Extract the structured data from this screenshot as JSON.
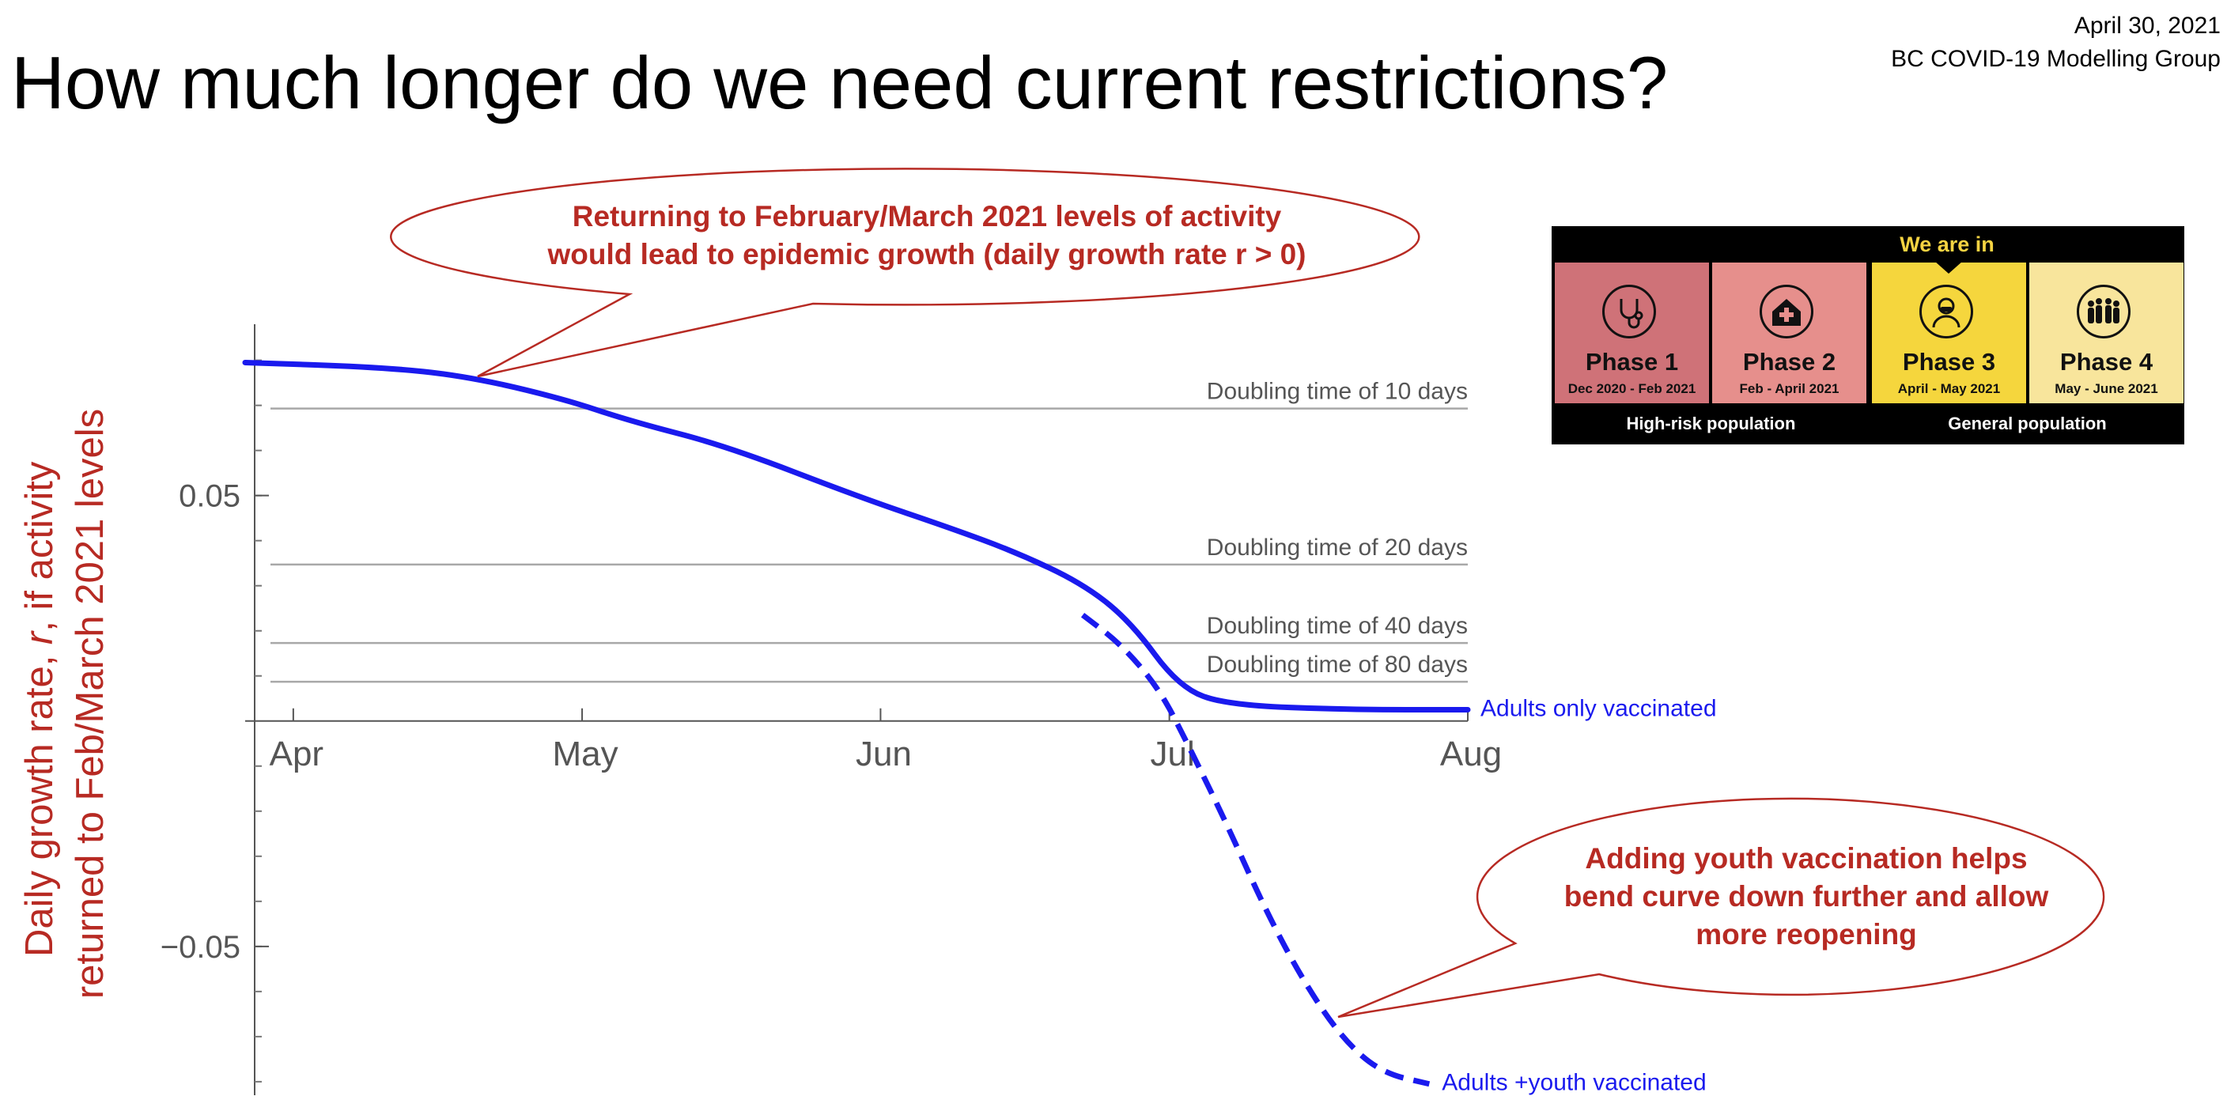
{
  "header": {
    "title": "How much longer do we need current restrictions?",
    "date": "April 30, 2021",
    "group": "BC COVID-19 Modelling Group"
  },
  "chart_data": {
    "type": "line",
    "ylabel_line1_parts": [
      "Daily growth rate, ",
      "r",
      ", if activity"
    ],
    "ylabel_line2": "returned to Feb/March 2021 levels",
    "xlim": [
      "2021-03-27",
      "2021-08-01"
    ],
    "ylim": [
      -0.083,
      0.088
    ],
    "x_ticks": [
      {
        "label": "Apr",
        "date": "2021-04-01"
      },
      {
        "label": "May",
        "date": "2021-05-01"
      },
      {
        "label": "Jun",
        "date": "2021-06-01"
      },
      {
        "label": "Jul",
        "date": "2021-07-01"
      },
      {
        "label": "Aug",
        "date": "2021-08-01"
      }
    ],
    "y_ticks": [
      {
        "label": "0.05",
        "value": 0.05
      },
      {
        "label": "−0.05",
        "value": -0.05
      }
    ],
    "y_minor_ticks": [
      0.08,
      0.07,
      0.06,
      0.05,
      0.04,
      0.03,
      0.02,
      0.01,
      -0.01,
      -0.02,
      -0.03,
      -0.04,
      -0.05,
      -0.06,
      -0.07,
      -0.08
    ],
    "reference_lines": [
      {
        "label": "Doubling time of 10 days",
        "value": 0.0693
      },
      {
        "label": "Doubling time of 20 days",
        "value": 0.0347
      },
      {
        "label": "Doubling time of 40 days",
        "value": 0.0173
      },
      {
        "label": "Doubling time of 80 days",
        "value": 0.0087
      }
    ],
    "series": [
      {
        "name": "Adults only vaccinated",
        "style": "solid",
        "color": "#1a1aee",
        "x": [
          "2021-03-27",
          "2021-04-10",
          "2021-04-19",
          "2021-04-29",
          "2021-05-06",
          "2021-05-16",
          "2021-05-30",
          "2021-06-08",
          "2021-06-15",
          "2021-06-22",
          "2021-06-27",
          "2021-07-02",
          "2021-07-07",
          "2021-07-20",
          "2021-08-01"
        ],
        "y": [
          0.0795,
          0.0785,
          0.0765,
          0.0715,
          0.0665,
          0.061,
          0.0495,
          0.043,
          0.0375,
          0.0305,
          0.022,
          0.0075,
          0.0035,
          0.0025,
          0.0025
        ]
      },
      {
        "name": "Adults +youth vaccinated",
        "style": "dashed",
        "color": "#1a1aee",
        "x": [
          "2021-06-22",
          "2021-06-26",
          "2021-06-30",
          "2021-07-03",
          "2021-07-07",
          "2021-07-11",
          "2021-07-15",
          "2021-07-19",
          "2021-07-23",
          "2021-07-28"
        ],
        "y": [
          0.0235,
          0.017,
          0.007,
          -0.0055,
          -0.023,
          -0.042,
          -0.058,
          -0.0705,
          -0.078,
          -0.0805
        ]
      }
    ],
    "annotations": [
      {
        "lines": [
          "Returning to February/March 2021 levels of activity",
          "would lead to epidemic growth (daily growth rate r > 0)"
        ]
      },
      {
        "lines": [
          "Adding youth vaccination helps",
          "bend curve down further and allow",
          "more reopening"
        ]
      }
    ]
  },
  "phase_banner": {
    "header": "We are in",
    "phases": [
      {
        "name": "Phase 1",
        "dates": "Dec 2020 - Feb 2021",
        "color": "#cf7278",
        "icon": "stethoscope-icon"
      },
      {
        "name": "Phase 2",
        "dates": "Feb - April 2021",
        "color": "#e68f8c",
        "icon": "care-home-icon"
      },
      {
        "name": "Phase 3",
        "dates": "April - May 2021",
        "color": "#f5d63d",
        "icon": "person-icon"
      },
      {
        "name": "Phase 4",
        "dates": "May - June 2021",
        "color": "#f8e59c",
        "icon": "crowd-icon"
      }
    ],
    "populations": [
      "High-risk population",
      "General population"
    ]
  }
}
